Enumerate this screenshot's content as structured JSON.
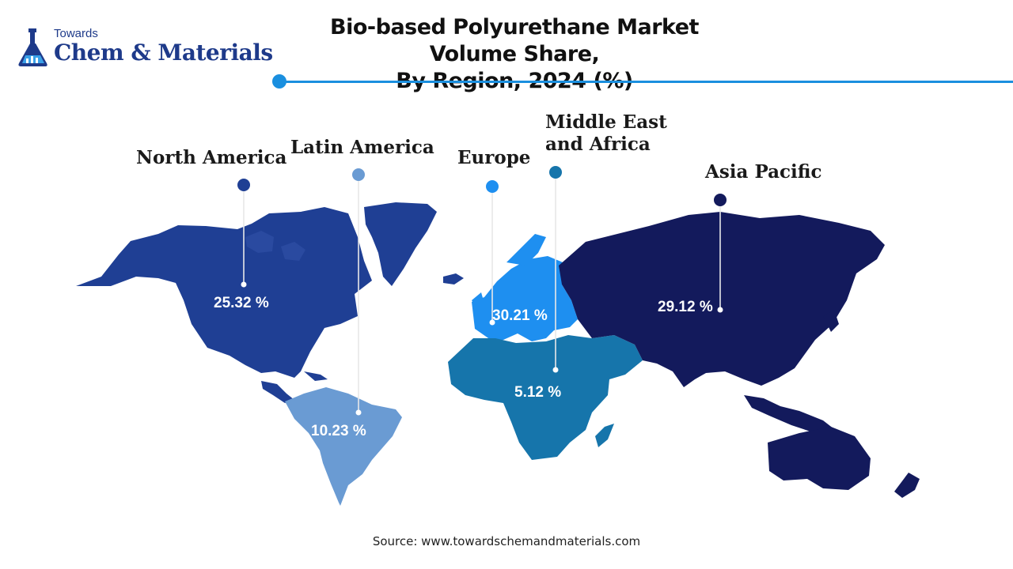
{
  "logo": {
    "small": "Towards",
    "big": "Chem & Materials"
  },
  "title": {
    "line1": "Bio-based Polyurethane Market Volume Share,",
    "line2": "By Region, 2024 (%)"
  },
  "source": "Source: www.towardschemandmaterials.com",
  "colors": {
    "north_america": "#1f3f94",
    "latin_america": "#6a9bd3",
    "europe": "#1e8ff0",
    "middle_east_africa": "#1675ab",
    "asia_pacific": "#131a5c",
    "accent": "#1a8fdf"
  },
  "regions": [
    {
      "key": "north_america",
      "label": "North America",
      "value": "25.32 %"
    },
    {
      "key": "latin_america",
      "label": "Latin America",
      "value": "10.23 %"
    },
    {
      "key": "europe",
      "label": "Europe",
      "value": "30.21 %"
    },
    {
      "key": "middle_east_africa",
      "label_line1": "Middle East",
      "label_line2": "and Africa",
      "value": "5.12 %"
    },
    {
      "key": "asia_pacific",
      "label": "Asia Pacific",
      "value": "29.12 %"
    }
  ]
}
